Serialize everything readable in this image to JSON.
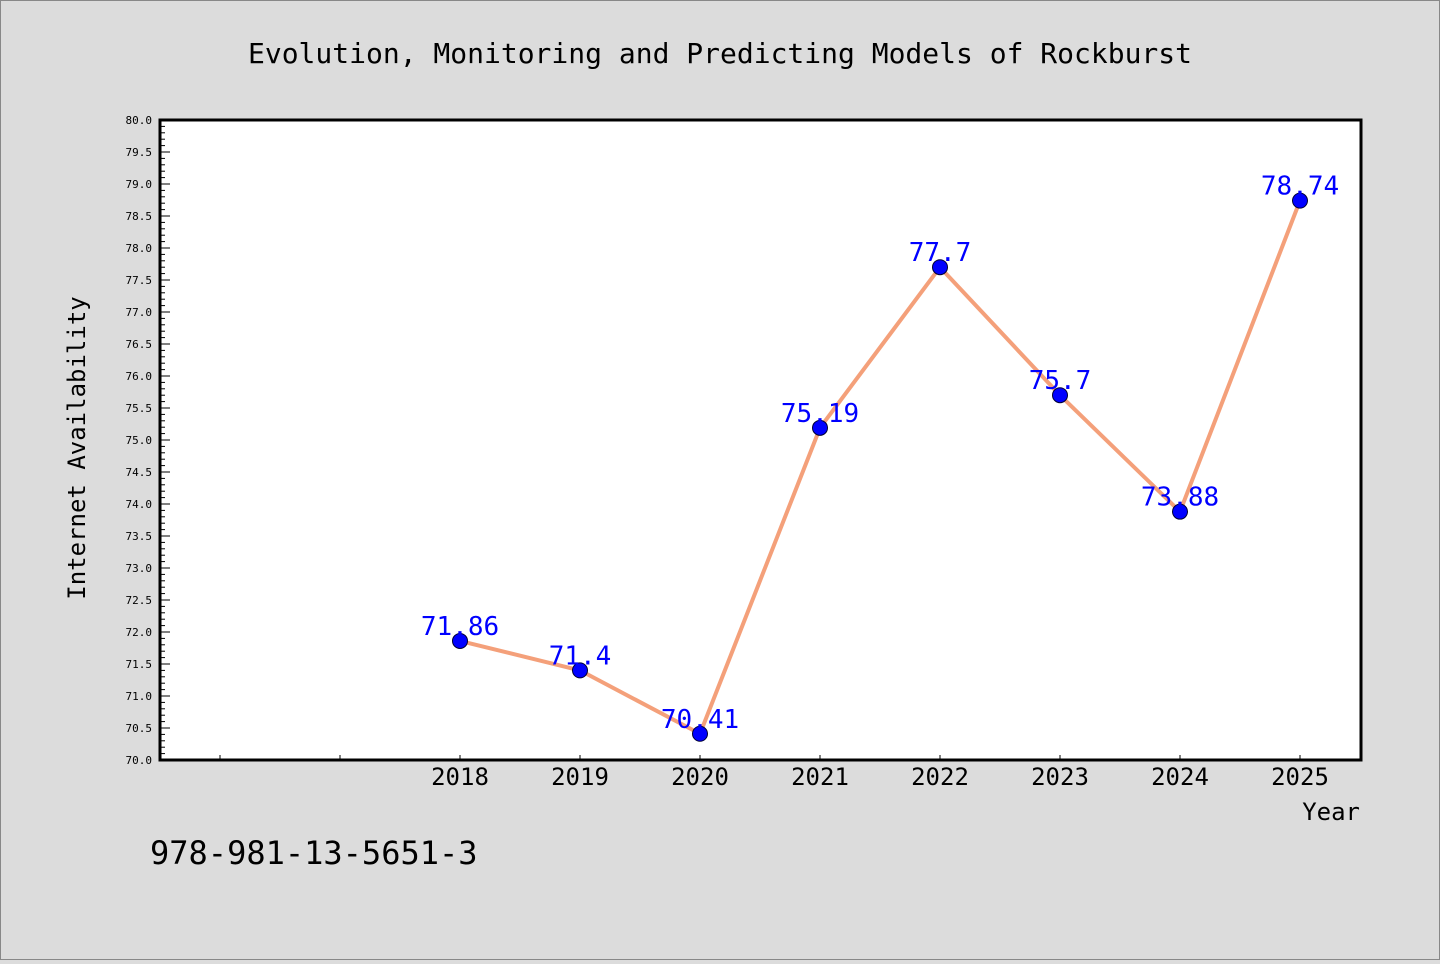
{
  "chart_data": {
    "type": "line",
    "title": "Evolution, Monitoring and Predicting Models of Rockburst",
    "xlabel": "Year",
    "ylabel": "Internet Availability",
    "footer": "978-981-13-5651-3",
    "x": [
      "2018",
      "2019",
      "2020",
      "2021",
      "2022",
      "2023",
      "2024",
      "2025"
    ],
    "series": [
      {
        "values": [
          71.86,
          71.4,
          70.41,
          75.19,
          77.7,
          75.7,
          73.88,
          78.74
        ],
        "labels": [
          "71.86",
          "71.4",
          "70.41",
          "75.19",
          "77.7",
          "75.7",
          "73.88",
          "78.74"
        ]
      }
    ],
    "ylim": [
      70.0,
      80.0
    ],
    "yticks": [
      "70.0",
      "70.5",
      "71.0",
      "71.5",
      "72.0",
      "72.5",
      "73.0",
      "73.5",
      "74.0",
      "74.5",
      "75.0",
      "75.5",
      "76.0",
      "76.5",
      "77.0",
      "77.5",
      "78.0",
      "78.5",
      "79.0",
      "79.5",
      "80.0"
    ],
    "grid": false,
    "colors": {
      "line": "#f4a07a",
      "marker": "#0000ff",
      "label": "#0000ff",
      "background": "#dcdcdc",
      "plot": "#ffffff"
    }
  }
}
